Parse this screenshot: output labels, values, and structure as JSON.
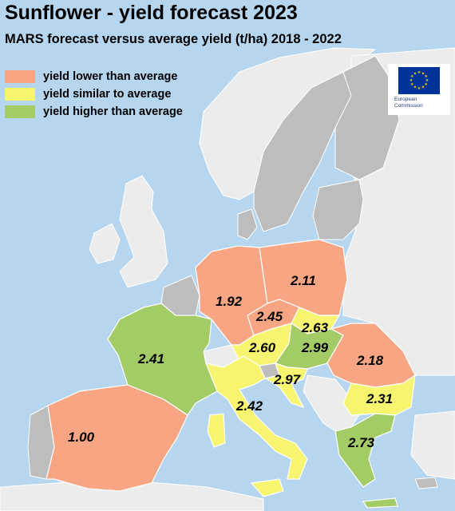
{
  "title": "Sunflower - yield forecast 2023",
  "subtitle": "MARS forecast versus average yield (t/ha) 2018 - 2022",
  "legend": [
    {
      "label": "yield lower than average",
      "color": "#f7a582"
    },
    {
      "label": "yield similar to average",
      "color": "#f7f56f"
    },
    {
      "label": "yield higher than average",
      "color": "#a3cc66"
    }
  ],
  "logo": {
    "line1": "European",
    "line2": "Commission"
  },
  "colors": {
    "sea": "#b5d6ee",
    "non_eu_land": "#ececec",
    "eu_no_data": "#bdbdbd",
    "border": "#ffffff"
  },
  "map": {
    "regions": [
      {
        "id": "spain",
        "category": "lower",
        "value": "1.00"
      },
      {
        "id": "france",
        "category": "higher",
        "value": "2.41"
      },
      {
        "id": "germany",
        "category": "lower",
        "value": "1.92"
      },
      {
        "id": "poland",
        "category": "lower",
        "value": "2.11"
      },
      {
        "id": "czechia",
        "category": "lower",
        "value": "2.45"
      },
      {
        "id": "slovakia",
        "category": "similar",
        "value": "2.63"
      },
      {
        "id": "austria",
        "category": "similar",
        "value": "2.60"
      },
      {
        "id": "hungary",
        "category": "higher",
        "value": "2.99"
      },
      {
        "id": "romania",
        "category": "lower",
        "value": "2.18"
      },
      {
        "id": "croatia",
        "category": "similar",
        "value": "2.97"
      },
      {
        "id": "italy",
        "category": "similar",
        "value": "2.42"
      },
      {
        "id": "bulgaria",
        "category": "similar",
        "value": "2.31"
      },
      {
        "id": "greece",
        "category": "higher",
        "value": "2.73"
      }
    ]
  }
}
